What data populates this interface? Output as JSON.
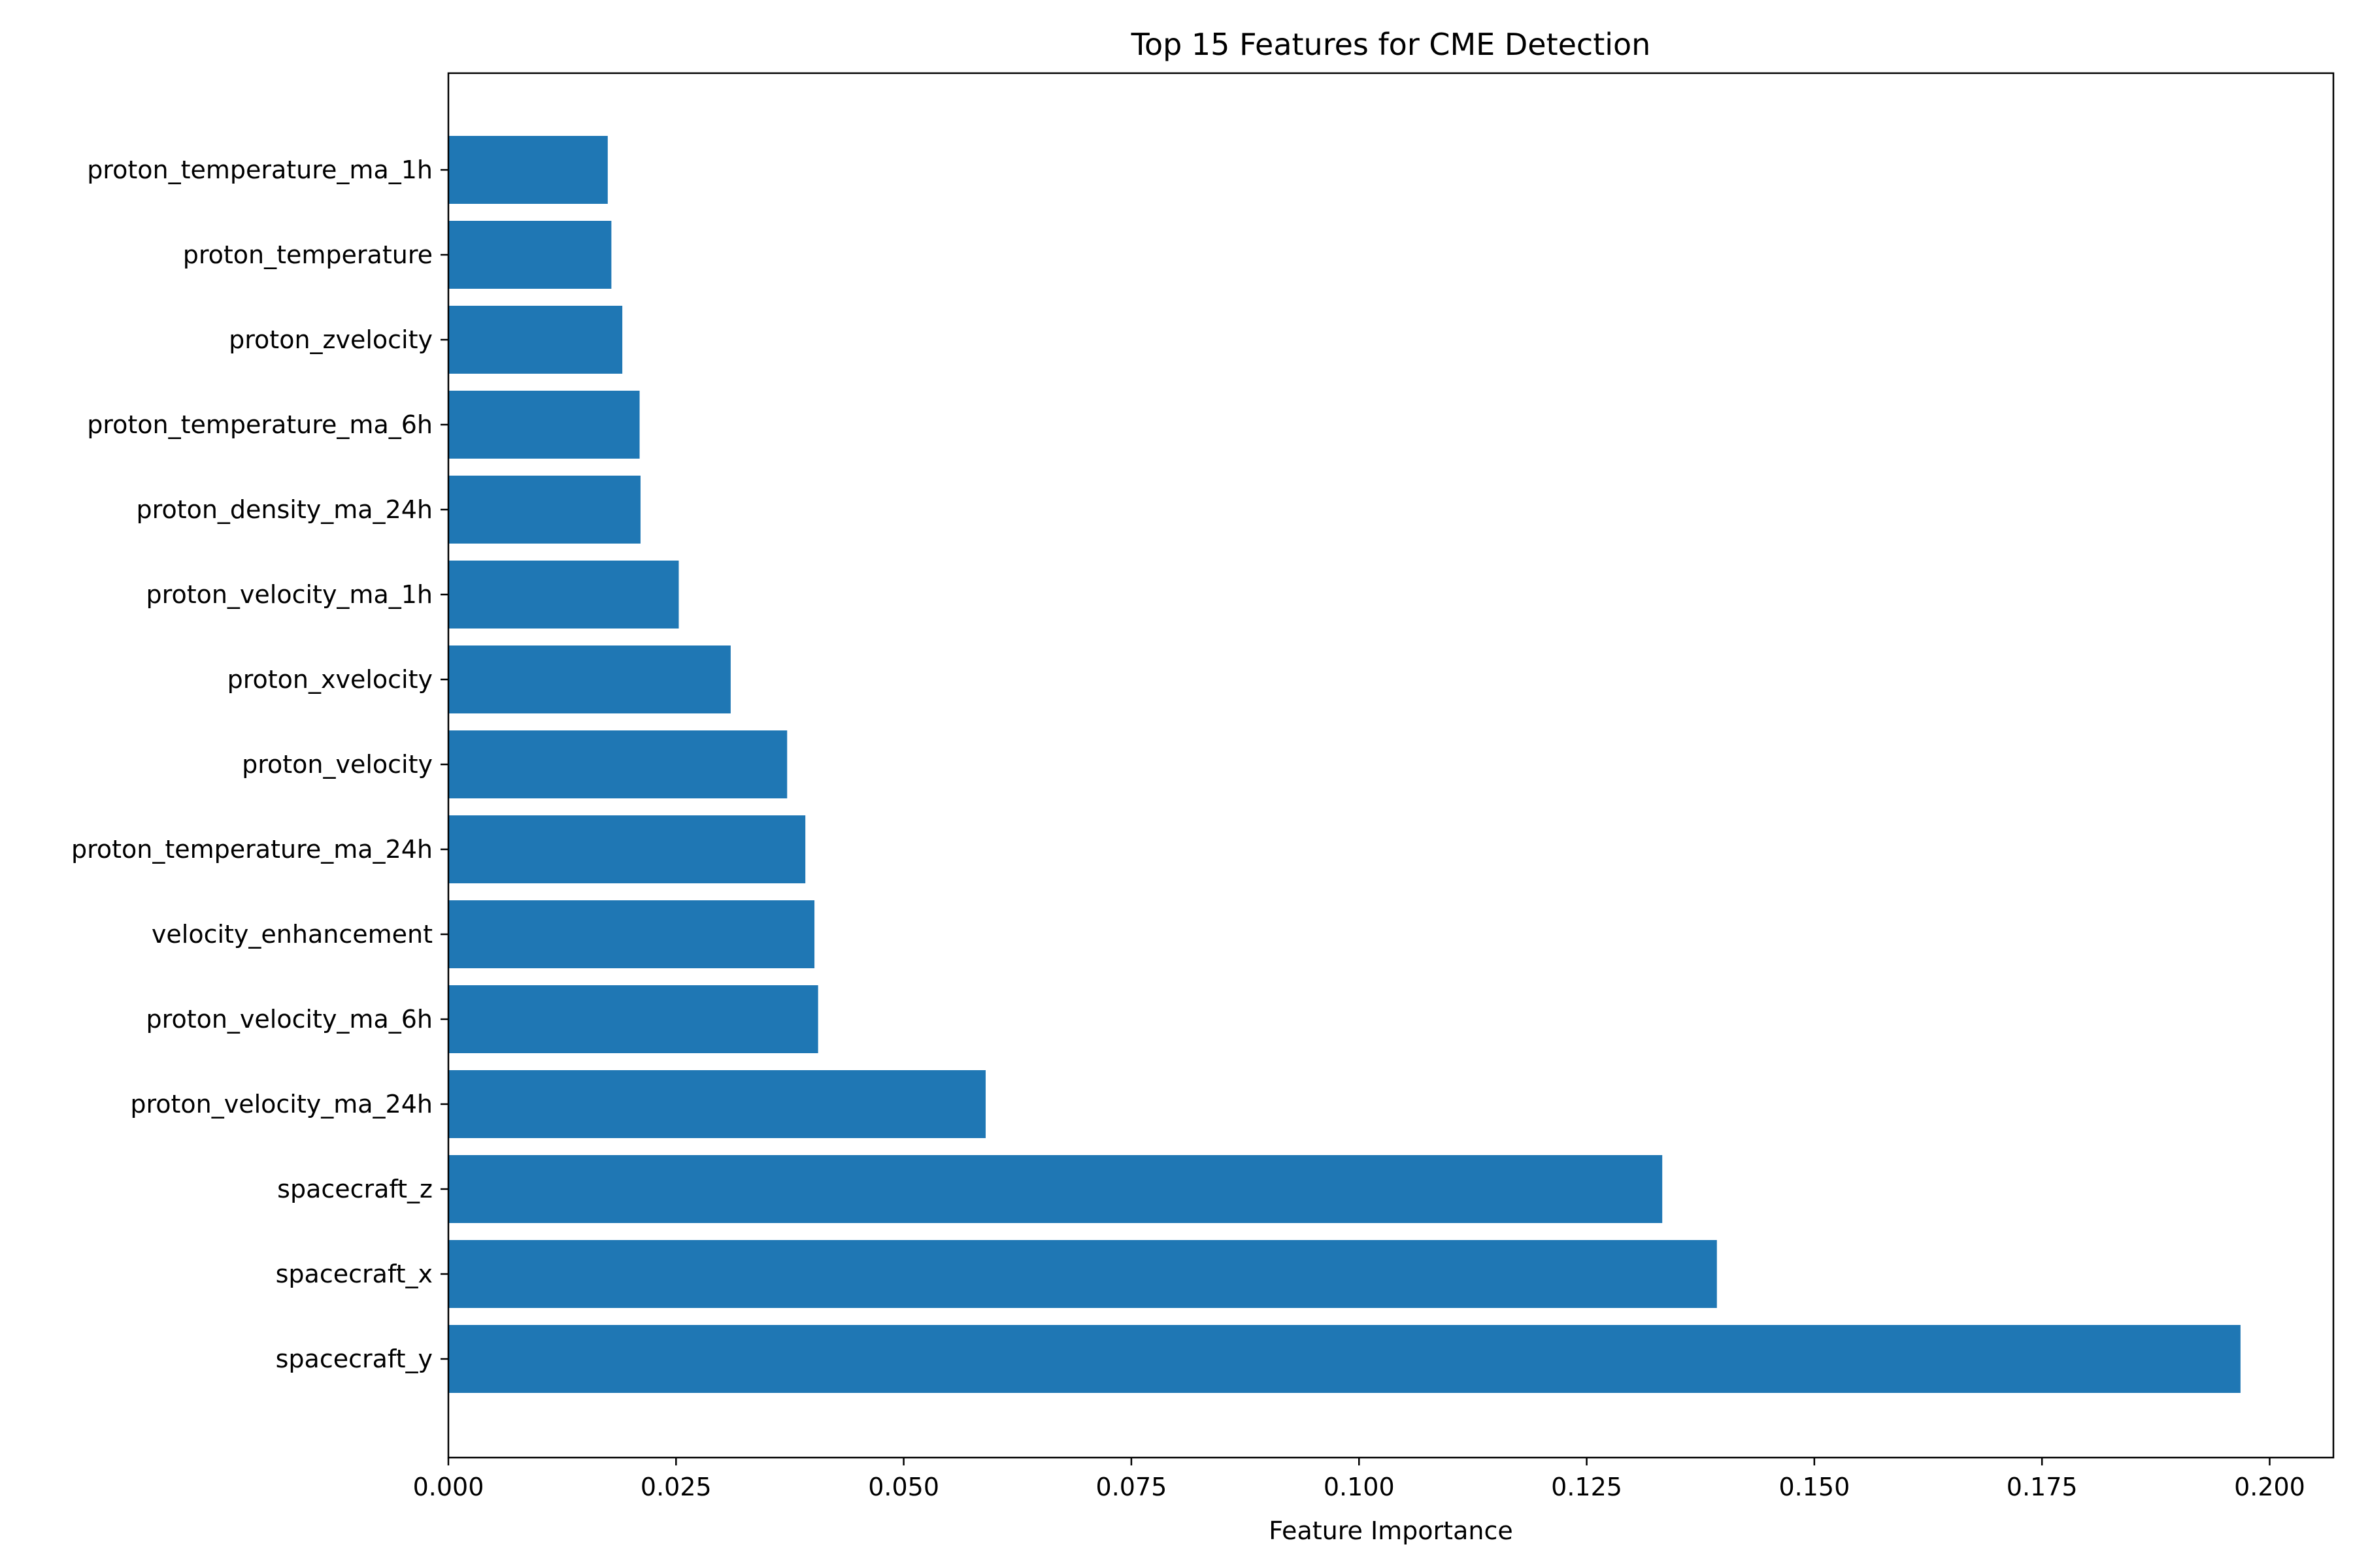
{
  "chart_data": {
    "type": "bar",
    "orientation": "horizontal",
    "title": "Top 15 Features for CME Detection",
    "xlabel": "Feature Importance",
    "ylabel": "",
    "xlim": [
      0,
      0.207
    ],
    "xticks": [
      "0.000",
      "0.025",
      "0.050",
      "0.075",
      "0.100",
      "0.125",
      "0.150",
      "0.175",
      "0.200"
    ],
    "categories": [
      "proton_temperature_ma_1h",
      "proton_temperature",
      "proton_zvelocity",
      "proton_temperature_ma_6h",
      "proton_density_ma_24h",
      "proton_velocity_ma_1h",
      "proton_xvelocity",
      "proton_velocity",
      "proton_temperature_ma_24h",
      "velocity_enhancement",
      "proton_velocity_ma_6h",
      "proton_velocity_ma_24h",
      "spacecraft_z",
      "spacecraft_x",
      "spacecraft_y"
    ],
    "values": [
      0.0175,
      0.0179,
      0.0191,
      0.021,
      0.0211,
      0.0253,
      0.031,
      0.0372,
      0.0392,
      0.0402,
      0.0406,
      0.059,
      0.1333,
      0.1393,
      0.1968
    ],
    "grid": false,
    "legend": "none",
    "bar_color": "#1f77b4"
  }
}
